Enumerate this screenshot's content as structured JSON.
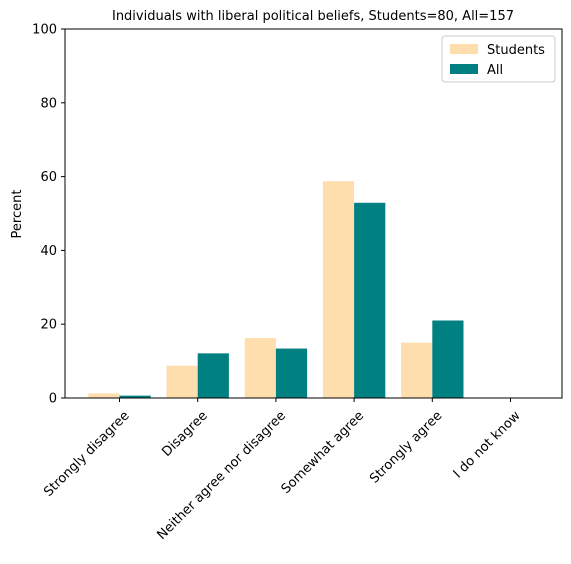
{
  "chart_data": {
    "type": "bar",
    "title": "Individuals with liberal political beliefs, Students=80, All=157",
    "xlabel": "",
    "ylabel": "Percent",
    "ylim": [
      0,
      100
    ],
    "yticks": [
      0,
      20,
      40,
      60,
      80,
      100
    ],
    "categories": [
      "Strongly disagree",
      "Disagree",
      "Neither agree nor disagree",
      "Somewhat agree",
      "Strongly agree",
      "I do not know"
    ],
    "series": [
      {
        "name": "Students",
        "color": "#ffdead",
        "values": [
          1.25,
          8.75,
          16.25,
          58.75,
          15.0,
          0.0
        ]
      },
      {
        "name": "All",
        "color": "#008080",
        "values": [
          0.64,
          12.1,
          13.4,
          52.9,
          21.0,
          0.0
        ]
      }
    ],
    "legend": "top-right",
    "grid": false
  }
}
